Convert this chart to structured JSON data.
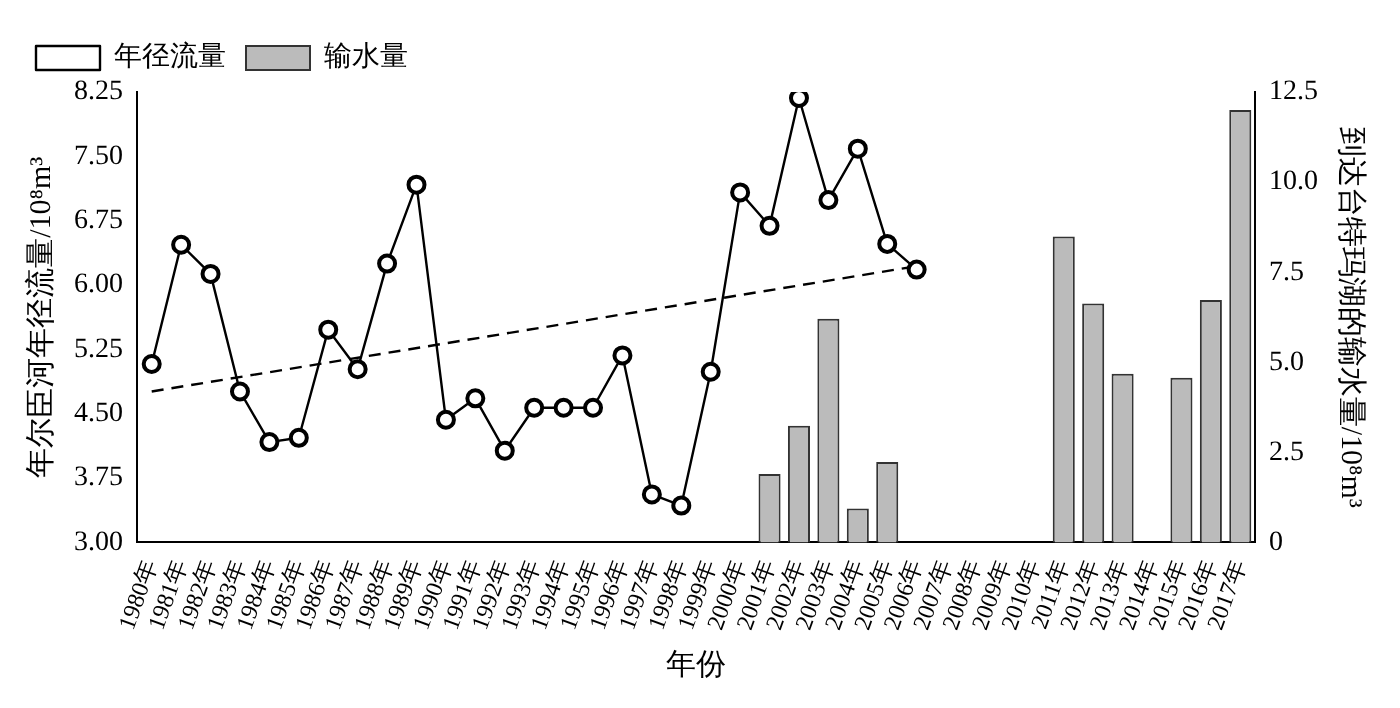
{
  "chart_data": {
    "type": "line",
    "xlabel": "年份",
    "ylabel": "年尔臣河年径流量/10⁸m³",
    "y2label": "到达台特玛湖的输水量/10⁸m³",
    "categories": [
      "1980年",
      "1981年",
      "1982年",
      "1983年",
      "1984年",
      "1985年",
      "1986年",
      "1987年",
      "1988年",
      "1989年",
      "1990年",
      "1991年",
      "1992年",
      "1993年",
      "1994年",
      "1995年",
      "1996年",
      "1997年",
      "1998年",
      "1999年",
      "2000年",
      "2001年",
      "2002年",
      "2003年",
      "2004年",
      "2005年",
      "2006年",
      "2007年",
      "2008年",
      "2009年",
      "2010年",
      "2011年",
      "2012年",
      "2013年",
      "2014年",
      "2015年",
      "2016年",
      "2017年"
    ],
    "series": [
      {
        "name": "年径流量",
        "color": "#000000",
        "marker": "circle",
        "line_style": "solid",
        "values": [
          5.08,
          6.47,
          6.13,
          4.76,
          4.17,
          4.22,
          5.48,
          5.02,
          6.25,
          7.17,
          4.43,
          4.68,
          4.07,
          4.57,
          4.57,
          4.57,
          5.18,
          3.56,
          3.43,
          4.99,
          7.08,
          6.69,
          8.18,
          6.99,
          7.59,
          6.48,
          6.18,
          null,
          null,
          null,
          null,
          null,
          null,
          null,
          null,
          null,
          null,
          null
        ]
      },
      {
        "name": "输水量",
        "type": "bar",
        "axis": "y2",
        "color": "#bbbbbb",
        "values": [
          null,
          null,
          null,
          null,
          null,
          null,
          null,
          null,
          null,
          null,
          null,
          null,
          null,
          null,
          null,
          null,
          null,
          null,
          null,
          null,
          null,
          1.9,
          3.24,
          6.21,
          0.94,
          2.23,
          null,
          null,
          null,
          null,
          null,
          8.49,
          6.63,
          4.68,
          null,
          4.57,
          6.73,
          12.0
        ]
      },
      {
        "color": "#000000",
        "marker": "none",
        "line_style": "dashed",
        "x": [
          "1980年",
          "2006年"
        ],
        "values": [
          4.76,
          6.22
        ]
      }
    ],
    "ylim": [
      3,
      8.25
    ],
    "yticks": [
      {
        "value": 3,
        "label": "3.00"
      },
      {
        "value": 3.75,
        "label": "3.75"
      },
      {
        "value": 4.5,
        "label": "4.50"
      },
      {
        "value": 5.25,
        "label": "5.25"
      },
      {
        "value": 6,
        "label": "6.00"
      },
      {
        "value": 6.75,
        "label": "6.75"
      },
      {
        "value": 7.5,
        "label": "7.50"
      },
      {
        "value": 8.25,
        "label": "8.25"
      }
    ],
    "y2lim": [
      0,
      12.5
    ],
    "y2ticks": [
      0,
      2.5,
      {
        "value": 5,
        "label": "5.0"
      },
      7.5,
      {
        "value": 10,
        "label": "10.0"
      },
      12.5
    ],
    "grid": false,
    "legend": "top left"
  }
}
